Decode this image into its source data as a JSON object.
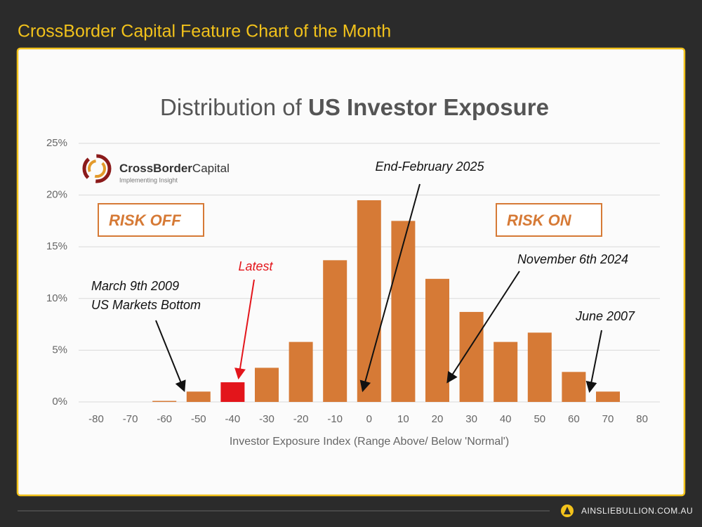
{
  "header": {
    "title": "CrossBorder Capital Feature Chart of the Month"
  },
  "footer": {
    "site": "AINSLIEBULLION.COM.AU"
  },
  "logo": {
    "name_bold": "CrossBorder",
    "name": "Capital",
    "tagline": "Implementing Insight"
  },
  "chart_data": {
    "type": "bar",
    "title": {
      "plain": "Distribution of",
      "bold": "US Investor Exposure"
    },
    "x_label": "Investor Exposure Index  (Range Above/ Below 'Normal')",
    "categories": [
      "-80",
      "-70",
      "-60",
      "-50",
      "-40",
      "-30",
      "-20",
      "-10",
      "0",
      "10",
      "20",
      "30",
      "40",
      "50",
      "60",
      "70",
      "80"
    ],
    "values": [
      0,
      0,
      0.1,
      1.0,
      1.9,
      3.3,
      5.8,
      13.7,
      19.5,
      17.5,
      11.9,
      8.7,
      5.8,
      6.7,
      2.9,
      1.0,
      0
    ],
    "bar_colors": [
      "#d67a36",
      "#d67a36",
      "#d67a36",
      "#d67a36",
      "#e3151b",
      "#d67a36",
      "#d67a36",
      "#d67a36",
      "#d67a36",
      "#d67a36",
      "#d67a36",
      "#d67a36",
      "#d67a36",
      "#d67a36",
      "#d67a36",
      "#d67a36",
      "#d67a36"
    ],
    "ylim": [
      0,
      25
    ],
    "yticks": [
      {
        "value": 0,
        "label": "0%"
      },
      {
        "value": 5,
        "label": "5%"
      },
      {
        "value": 10,
        "label": "10%"
      },
      {
        "value": 15,
        "label": "15%"
      },
      {
        "value": 20,
        "label": "20%"
      },
      {
        "value": 25,
        "label": "25%"
      }
    ],
    "grid": true,
    "boxes": [
      "RISK OFF",
      "RISK ON"
    ],
    "annotations": [
      {
        "lines": [
          "End-February 2025"
        ],
        "color": "#111111"
      },
      {
        "lines": [
          "Latest"
        ],
        "color": "#e3151b"
      },
      {
        "lines": [
          "March 9th 2009",
          "US Markets Bottom"
        ],
        "color": "#111111"
      },
      {
        "lines": [
          "November 6th 2024"
        ],
        "color": "#111111"
      },
      {
        "lines": [
          "June 2007"
        ],
        "color": "#111111"
      }
    ]
  }
}
